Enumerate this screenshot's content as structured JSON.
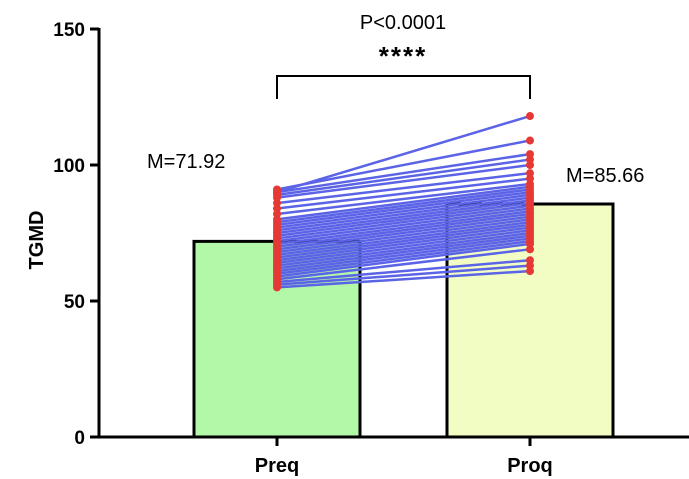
{
  "chart_data": {
    "type": "bar",
    "title": "",
    "xlabel": "",
    "ylabel": "TGMD",
    "ylim": [
      0,
      150
    ],
    "yticks": [
      0,
      50,
      100,
      150
    ],
    "categories": [
      "Preq",
      "Proq"
    ],
    "values": [
      71.92,
      85.66
    ],
    "mean_labels": [
      "M=71.92",
      "M=85.66"
    ],
    "bar_colors": [
      "#b3f7a8",
      "#f2fdc4"
    ],
    "significance": {
      "pvalue": "P<0.0001",
      "stars": "****"
    },
    "paired_lines_color": "#5b63e6",
    "point_color": "#e53935",
    "paired_observations": [
      [
        55,
        61
      ],
      [
        56,
        63
      ],
      [
        57,
        65
      ],
      [
        58,
        69
      ],
      [
        59,
        71
      ],
      [
        60,
        72
      ],
      [
        61,
        73
      ],
      [
        62,
        74
      ],
      [
        63,
        75
      ],
      [
        64,
        76
      ],
      [
        65,
        77
      ],
      [
        66,
        78
      ],
      [
        67,
        79
      ],
      [
        68,
        80
      ],
      [
        69,
        81
      ],
      [
        70,
        82
      ],
      [
        71,
        83
      ],
      [
        72,
        84
      ],
      [
        73,
        85
      ],
      [
        74,
        86
      ],
      [
        75,
        87
      ],
      [
        76,
        88
      ],
      [
        77,
        89
      ],
      [
        78,
        90
      ],
      [
        79,
        91
      ],
      [
        80,
        92
      ],
      [
        82,
        93
      ],
      [
        84,
        95
      ],
      [
        86,
        97
      ],
      [
        88,
        100
      ],
      [
        89,
        102
      ],
      [
        90,
        104
      ],
      [
        91,
        109
      ],
      [
        90,
        118
      ]
    ]
  }
}
